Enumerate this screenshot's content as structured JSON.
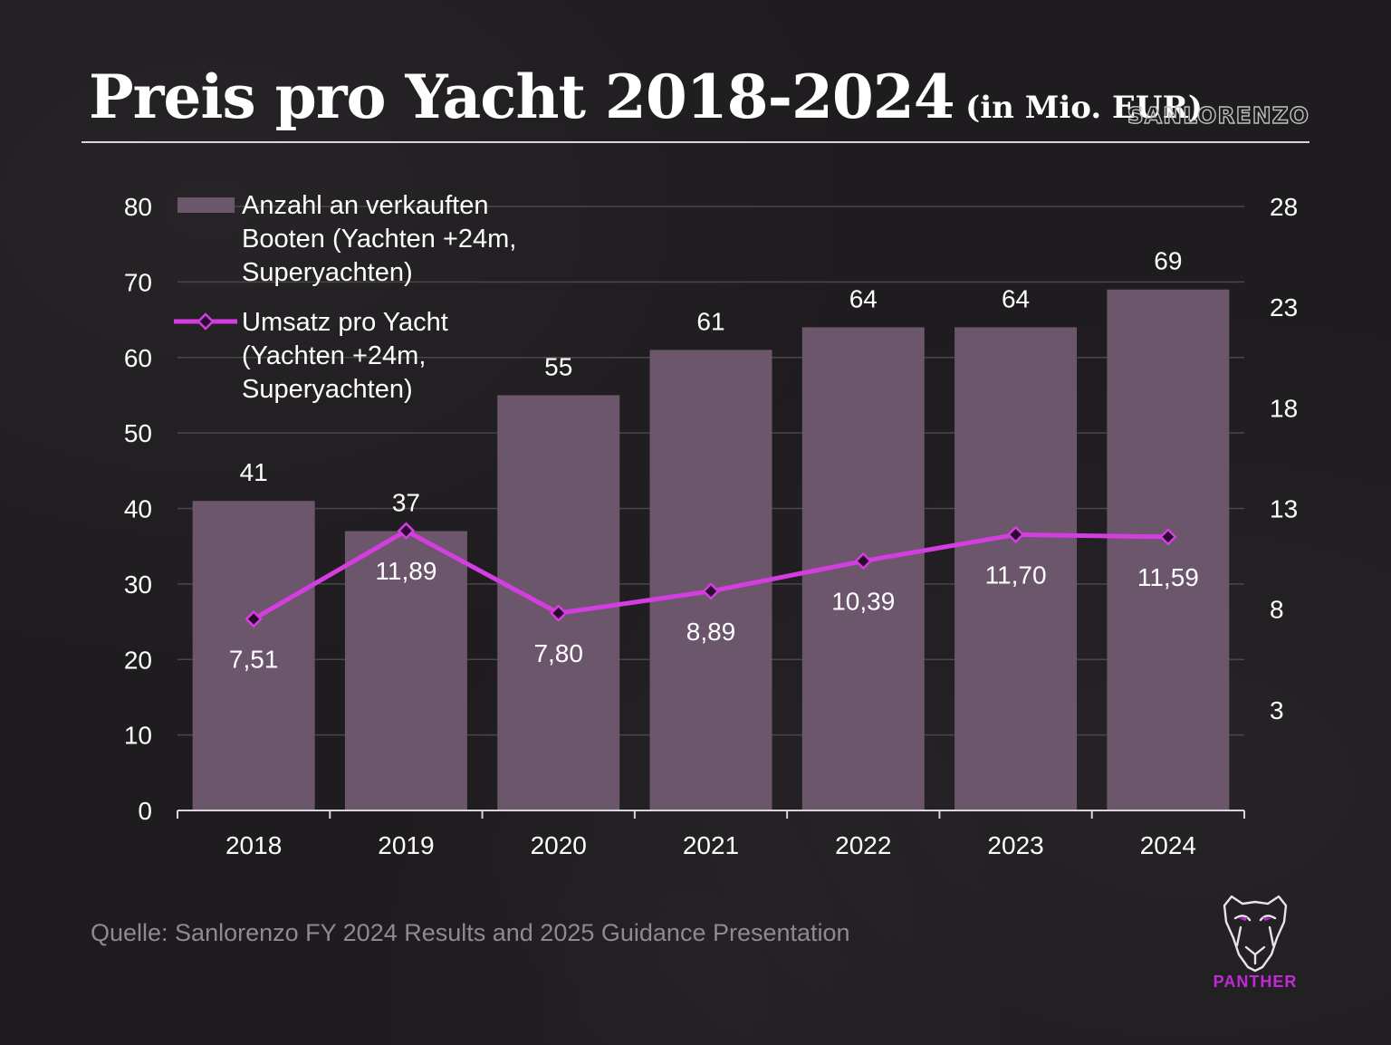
{
  "title": {
    "main": "Preis pro Yacht 2018-2024",
    "unit": "(in Mio. EUR)"
  },
  "brand": "SANLORENZO",
  "source": "Quelle: Sanlorenzo FY 2024 Results and 2025 Guidance Presentation",
  "footer_logo": "PANTHER",
  "colors": {
    "background": "#1f1c1f",
    "bar": "#6b566b",
    "line": "#d43ee0",
    "marker_fill": "#2a0a2e",
    "grid": "#4a464a",
    "logo_accent": "#c02ad6"
  },
  "chart_data": {
    "type": "bar",
    "categories": [
      "2018",
      "2019",
      "2020",
      "2021",
      "2022",
      "2023",
      "2024"
    ],
    "series": [
      {
        "name": "Anzahl an verkauften Booten (Yachten +24m, Superyachten)",
        "type": "bar",
        "axis": "left",
        "values": [
          41,
          37,
          55,
          61,
          64,
          64,
          69
        ],
        "labels": [
          "41",
          "37",
          "55",
          "61",
          "64",
          "64",
          "69"
        ]
      },
      {
        "name": "Umsatz pro Yacht (Yachten +24m, Superyachten)",
        "type": "line",
        "axis": "right",
        "values": [
          7.51,
          11.89,
          7.8,
          8.89,
          10.39,
          11.7,
          11.59
        ],
        "labels": [
          "7,51",
          "11,89",
          "7,80",
          "8,89",
          "10,39",
          "11,70",
          "11,59"
        ]
      }
    ],
    "legend": [
      {
        "lines": [
          "Anzahl an verkauften",
          "Booten (Yachten +24m,",
          "Superyachten)"
        ]
      },
      {
        "lines": [
          "Umsatz pro Yacht",
          "(Yachten +24m,",
          "Superyachten)"
        ]
      }
    ],
    "y_left": {
      "min": 0,
      "max": 80,
      "ticks": [
        0,
        10,
        20,
        30,
        40,
        50,
        60,
        70,
        80
      ]
    },
    "y_right": {
      "min": -2,
      "max": 28,
      "ticks": [
        3,
        8,
        13,
        18,
        23,
        28
      ]
    },
    "legend_position": "top-left",
    "grid": true
  }
}
